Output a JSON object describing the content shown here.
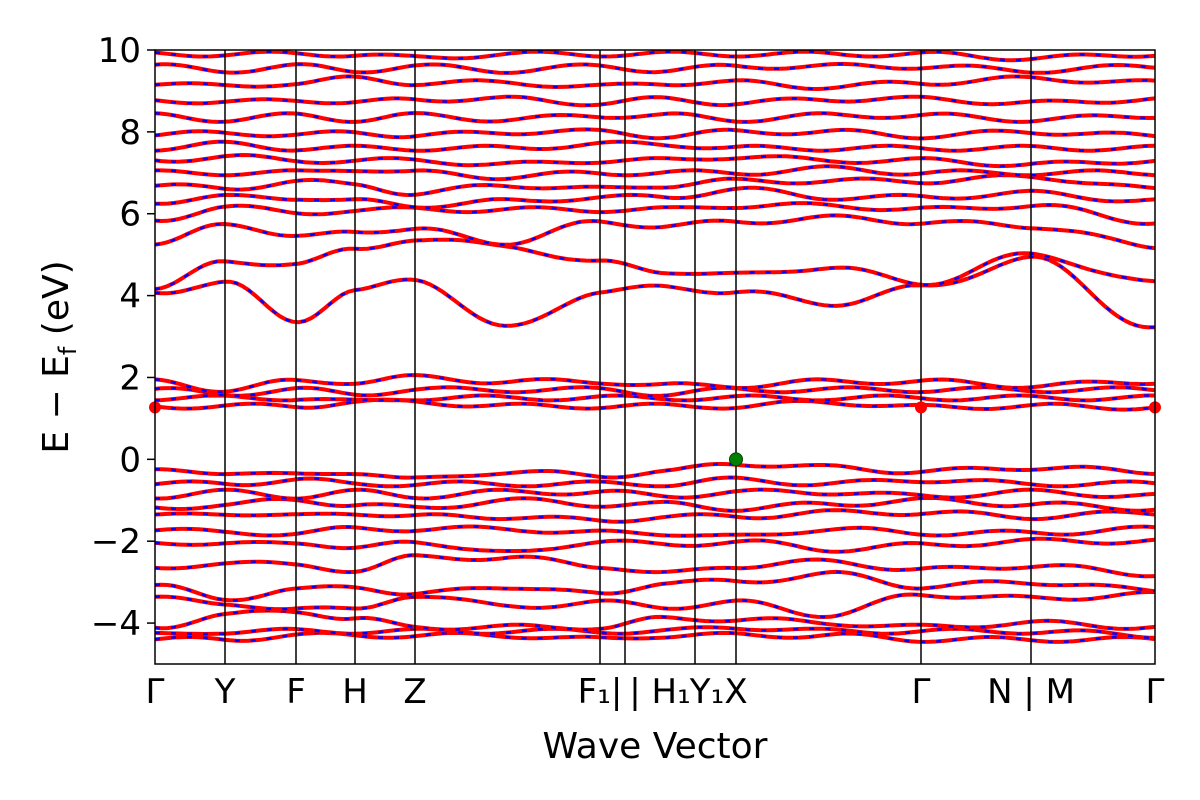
{
  "chart_data": {
    "type": "line",
    "title": "",
    "xlabel": "Wave Vector",
    "ylabel": "E − E_f (eV)",
    "ylabel_main": "E − E",
    "ylabel_sub": "f",
    "ylabel_tail": " (eV)",
    "ylim": [
      -5,
      10
    ],
    "yticks": [
      -4,
      -2,
      0,
      2,
      4,
      6,
      8,
      10
    ],
    "ytick_labels": [
      "−4",
      "−2",
      "0",
      "2",
      "4",
      "6",
      "8",
      "10"
    ],
    "grid": false,
    "legend": "none",
    "colors": {
      "band_up": "#ff0000",
      "band_down": "#0000ff",
      "vbm_marker": "#008000",
      "cbm_marker": "#ff0000"
    },
    "high_symmetry_points": [
      {
        "x": 0.0,
        "label": "Γ"
      },
      {
        "x": 0.07,
        "label": "Y"
      },
      {
        "x": 0.141,
        "label": "F"
      },
      {
        "x": 0.2,
        "label": "H"
      },
      {
        "x": 0.26,
        "label": "Z"
      },
      {
        "x": 0.445,
        "label": "F₁|"
      },
      {
        "x": 0.47,
        "label": "|"
      },
      {
        "x": 0.54,
        "label": "H₁"
      },
      {
        "x": 0.54,
        "label": "Y₁"
      },
      {
        "x": 0.581,
        "label": "X"
      },
      {
        "x": 0.766,
        "label": "Γ"
      },
      {
        "x": 0.876,
        "label": "N|M"
      },
      {
        "x": 1.0,
        "label": "Γ"
      }
    ],
    "xtick_labels": [
      {
        "text": "Γ",
        "x": 0.0
      },
      {
        "text": "Y",
        "x": 0.07
      },
      {
        "text": "F",
        "x": 0.141
      },
      {
        "text": "H",
        "x": 0.2
      },
      {
        "text": "Z",
        "x": 0.26
      },
      {
        "text": "F₁|",
        "x": 0.445
      },
      {
        "text": "| H₁",
        "x": 0.505
      },
      {
        "text": "Y₁",
        "x": 0.552
      },
      {
        "text": "X",
        "x": 0.581
      },
      {
        "text": "Γ",
        "x": 0.766
      },
      {
        "text": "N | M",
        "x": 0.876
      },
      {
        "text": "Γ",
        "x": 1.0
      }
    ],
    "vbm": {
      "x": 0.581,
      "y": 0.0
    },
    "cbm": [
      {
        "x": 0.0,
        "y": 1.27
      },
      {
        "x": 0.766,
        "y": 1.27
      },
      {
        "x": 1.0,
        "y": 1.27
      }
    ],
    "bands_approx": [
      [
        -4.4,
        -4.4,
        -4.3,
        -4.3,
        -4.3,
        -4.3,
        -4.4,
        -4.3,
        -4.3,
        -4.3,
        -4.4,
        -4.4,
        -4.4
      ],
      [
        -4.3,
        -4.2,
        -4.2,
        -4.2,
        -4.2,
        -4.2,
        -4.2,
        -4.2,
        -4.1,
        -4.2,
        -4.2,
        -4.2,
        -4.3
      ],
      [
        -4.1,
        -3.8,
        -3.7,
        -3.9,
        -4.1,
        -4.1,
        -4.1,
        -3.9,
        -3.9,
        -4.0,
        -4.1,
        -4.0,
        -4.1
      ],
      [
        -3.3,
        -3.6,
        -3.6,
        -3.7,
        -3.3,
        -3.6,
        -3.5,
        -3.6,
        -3.5,
        -3.8,
        -3.3,
        -3.4,
        -3.3
      ],
      [
        -3.1,
        -3.4,
        -3.2,
        -3.1,
        -3.3,
        -3.1,
        -3.3,
        -3.0,
        -3.0,
        -2.8,
        -3.1,
        -3.0,
        -3.2
      ],
      [
        -2.7,
        -2.5,
        -2.6,
        -2.7,
        -2.4,
        -2.4,
        -2.6,
        -2.8,
        -2.6,
        -2.5,
        -2.7,
        -2.6,
        -2.8
      ],
      [
        -2.0,
        -2.1,
        -2.0,
        -2.2,
        -2.0,
        -2.3,
        -2.0,
        -2.1,
        -2.0,
        -2.2,
        -2.1,
        -2.0,
        -2.0
      ],
      [
        -1.7,
        -1.8,
        -1.8,
        -1.7,
        -1.7,
        -1.7,
        -1.8,
        -1.8,
        -1.9,
        -1.7,
        -1.8,
        -1.8,
        -1.7
      ],
      [
        -1.4,
        -1.3,
        -1.4,
        -1.3,
        -1.4,
        -1.4,
        -1.5,
        -1.4,
        -1.4,
        -1.3,
        -1.3,
        -1.4,
        -1.3
      ],
      [
        -1.2,
        -1.1,
        -1.0,
        -1.1,
        -1.2,
        -1.0,
        -1.1,
        -1.1,
        -1.2,
        -1.1,
        -1.0,
        -1.1,
        -1.2
      ],
      [
        -0.9,
        -0.8,
        -0.9,
        -0.8,
        -0.9,
        -0.8,
        -0.8,
        -0.9,
        -0.8,
        -0.8,
        -0.9,
        -0.8,
        -0.9
      ],
      [
        -0.6,
        -0.6,
        -0.5,
        -0.6,
        -0.6,
        -0.6,
        -0.6,
        -0.6,
        -0.5,
        -0.6,
        -0.5,
        -0.6,
        -0.6
      ],
      [
        -0.3,
        -0.3,
        -0.4,
        -0.3,
        -0.5,
        -0.3,
        -0.4,
        -0.3,
        -0.1,
        -0.2,
        -0.3,
        -0.2,
        -0.3
      ],
      [
        1.3,
        1.3,
        1.3,
        1.4,
        1.4,
        1.3,
        1.3,
        1.3,
        1.3,
        1.4,
        1.27,
        1.3,
        1.27
      ],
      [
        1.5,
        1.5,
        1.5,
        1.4,
        1.5,
        1.5,
        1.5,
        1.5,
        1.5,
        1.5,
        1.5,
        1.5,
        1.5
      ],
      [
        1.7,
        1.6,
        1.7,
        1.6,
        1.7,
        1.7,
        1.7,
        1.6,
        1.7,
        1.7,
        1.7,
        1.7,
        1.7
      ],
      [
        1.9,
        1.7,
        1.9,
        1.9,
        2.0,
        1.9,
        1.9,
        1.8,
        1.8,
        1.9,
        1.9,
        1.8,
        1.9
      ],
      [
        4.1,
        4.3,
        3.4,
        4.1,
        4.4,
        3.2,
        4.1,
        4.2,
        4.1,
        3.8,
        4.2,
        4.9,
        3.2
      ],
      [
        4.2,
        4.8,
        4.8,
        5.1,
        5.4,
        5.2,
        4.8,
        4.6,
        4.5,
        4.7,
        4.3,
        5.0,
        4.3
      ],
      [
        5.2,
        5.8,
        5.4,
        5.6,
        5.6,
        5.3,
        5.8,
        5.7,
        5.8,
        5.9,
        5.8,
        5.7,
        5.2
      ],
      [
        5.8,
        6.2,
        6.0,
        6.1,
        6.1,
        6.1,
        6.1,
        6.1,
        6.2,
        6.2,
        6.1,
        6.2,
        5.8
      ],
      [
        6.3,
        6.4,
        6.4,
        6.3,
        6.2,
        6.3,
        6.4,
        6.4,
        6.6,
        6.4,
        6.4,
        6.5,
        6.3
      ],
      [
        6.7,
        6.6,
        6.8,
        6.7,
        6.5,
        6.7,
        6.6,
        6.7,
        6.8,
        6.8,
        6.8,
        6.9,
        6.6
      ],
      [
        7.0,
        7.0,
        7.0,
        7.1,
        7.0,
        6.9,
        7.0,
        7.0,
        7.0,
        7.1,
        7.0,
        7.0,
        7.0
      ],
      [
        7.3,
        7.4,
        7.3,
        7.3,
        7.3,
        7.2,
        7.3,
        7.3,
        7.4,
        7.3,
        7.3,
        7.2,
        7.3
      ],
      [
        7.6,
        7.7,
        7.6,
        7.6,
        7.6,
        7.6,
        7.7,
        7.7,
        7.6,
        7.6,
        7.6,
        7.6,
        7.6
      ],
      [
        7.9,
        8.0,
        7.9,
        8.0,
        7.9,
        8.0,
        8.0,
        7.9,
        8.0,
        8.0,
        7.9,
        8.0,
        7.9
      ],
      [
        8.4,
        8.3,
        8.4,
        8.3,
        8.4,
        8.3,
        8.4,
        8.4,
        8.3,
        8.4,
        8.4,
        8.3,
        8.4
      ],
      [
        8.8,
        8.7,
        8.8,
        8.7,
        8.8,
        8.8,
        8.7,
        8.8,
        8.7,
        8.8,
        8.8,
        8.7,
        8.8
      ],
      [
        9.2,
        9.1,
        9.2,
        9.3,
        9.2,
        9.2,
        9.1,
        9.2,
        9.2,
        9.1,
        9.2,
        9.3,
        9.2
      ],
      [
        9.6,
        9.5,
        9.6,
        9.5,
        9.6,
        9.5,
        9.6,
        9.5,
        9.6,
        9.6,
        9.6,
        9.5,
        9.6
      ],
      [
        9.9,
        9.9,
        9.9,
        9.9,
        9.8,
        9.9,
        9.9,
        9.9,
        9.9,
        9.9,
        9.9,
        9.8,
        9.9
      ]
    ]
  }
}
